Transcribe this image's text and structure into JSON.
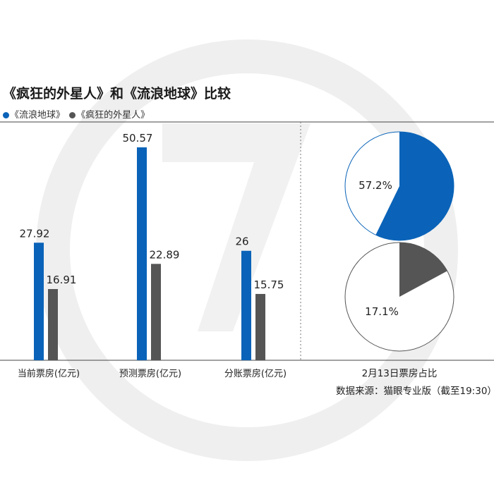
{
  "header": {
    "title": "《疯狂的外星人》和《流浪地球》比较"
  },
  "legend": [
    {
      "name": "《流浪地球》",
      "color": "#0a63b8"
    },
    {
      "name": "《疯狂的外星人》",
      "color": "#555555"
    }
  ],
  "chart_data": [
    {
      "type": "bar",
      "categories": [
        "当前票房(亿元)",
        "预测票房(亿元)",
        "分账票房(亿元)"
      ],
      "series": [
        {
          "name": "《流浪地球》",
          "values": [
            27.92,
            50.57,
            26
          ],
          "labels": [
            "27.92",
            "50.57",
            "26"
          ],
          "color": "#0a63b8"
        },
        {
          "name": "《疯狂的外星人》",
          "values": [
            16.91,
            22.89,
            15.75
          ],
          "labels": [
            "16.91",
            "22.89",
            "15.75"
          ],
          "color": "#555555"
        }
      ],
      "ylim": [
        0,
        55
      ],
      "grid": false
    },
    {
      "type": "pie",
      "title": "2月13日票房占比",
      "pies": [
        {
          "series": "《流浪地球》",
          "value": 57.2,
          "label": "57.2%",
          "color": "#0a63b8",
          "rest_color": "#ffffff"
        },
        {
          "series": "《疯狂的外星人》",
          "value": 17.1,
          "label": "17.1%",
          "color": "#555555",
          "rest_color": "#ffffff"
        }
      ]
    }
  ],
  "source": "数据来源：猫眼专业版（截至19:30）"
}
